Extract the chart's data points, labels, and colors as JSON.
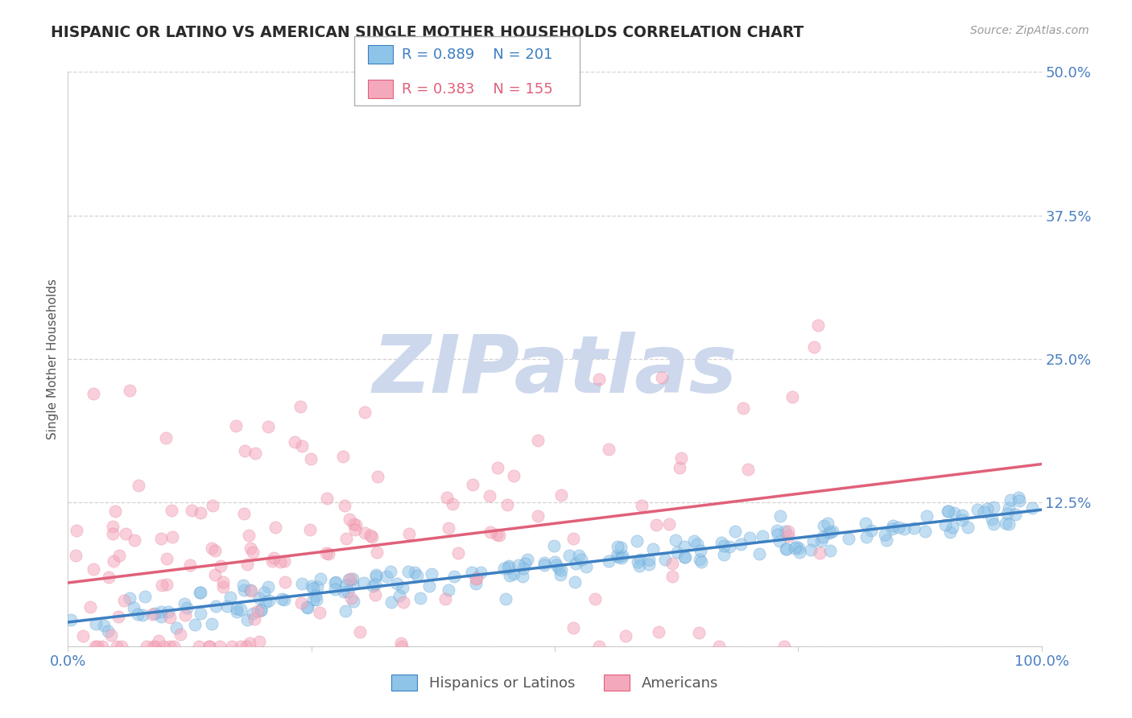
{
  "title": "HISPANIC OR LATINO VS AMERICAN SINGLE MOTHER HOUSEHOLDS CORRELATION CHART",
  "source_text": "Source: ZipAtlas.com",
  "ylabel": "Single Mother Households",
  "watermark": "ZIPatlas",
  "xmin": 0.0,
  "xmax": 1.0,
  "ymin": 0.0,
  "ymax": 0.5,
  "yticks": [
    0.0,
    0.125,
    0.25,
    0.375,
    0.5
  ],
  "ytick_labels": [
    "",
    "12.5%",
    "25.0%",
    "37.5%",
    "50.0%"
  ],
  "xticks": [
    0.0,
    0.25,
    0.5,
    0.75,
    1.0
  ],
  "xtick_labels": [
    "0.0%",
    "",
    "",
    "",
    "100.0%"
  ],
  "legend_blue_r": "R = 0.889",
  "legend_blue_n": "N = 201",
  "legend_pink_r": "R = 0.383",
  "legend_pink_n": "N = 155",
  "legend_label_blue": "Hispanics or Latinos",
  "legend_label_pink": "Americans",
  "blue_color": "#8ec4e8",
  "pink_color": "#f4a8bc",
  "blue_line_color": "#3d7fc1",
  "pink_line_color": "#e0607a",
  "title_color": "#2a2a2a",
  "axis_label_color": "#555555",
  "tick_label_color": "#4a7fc1",
  "grid_color": "#c8c8c8",
  "background_color": "#ffffff",
  "watermark_color": "#cdd8ed",
  "n_blue": 201,
  "n_pink": 155
}
